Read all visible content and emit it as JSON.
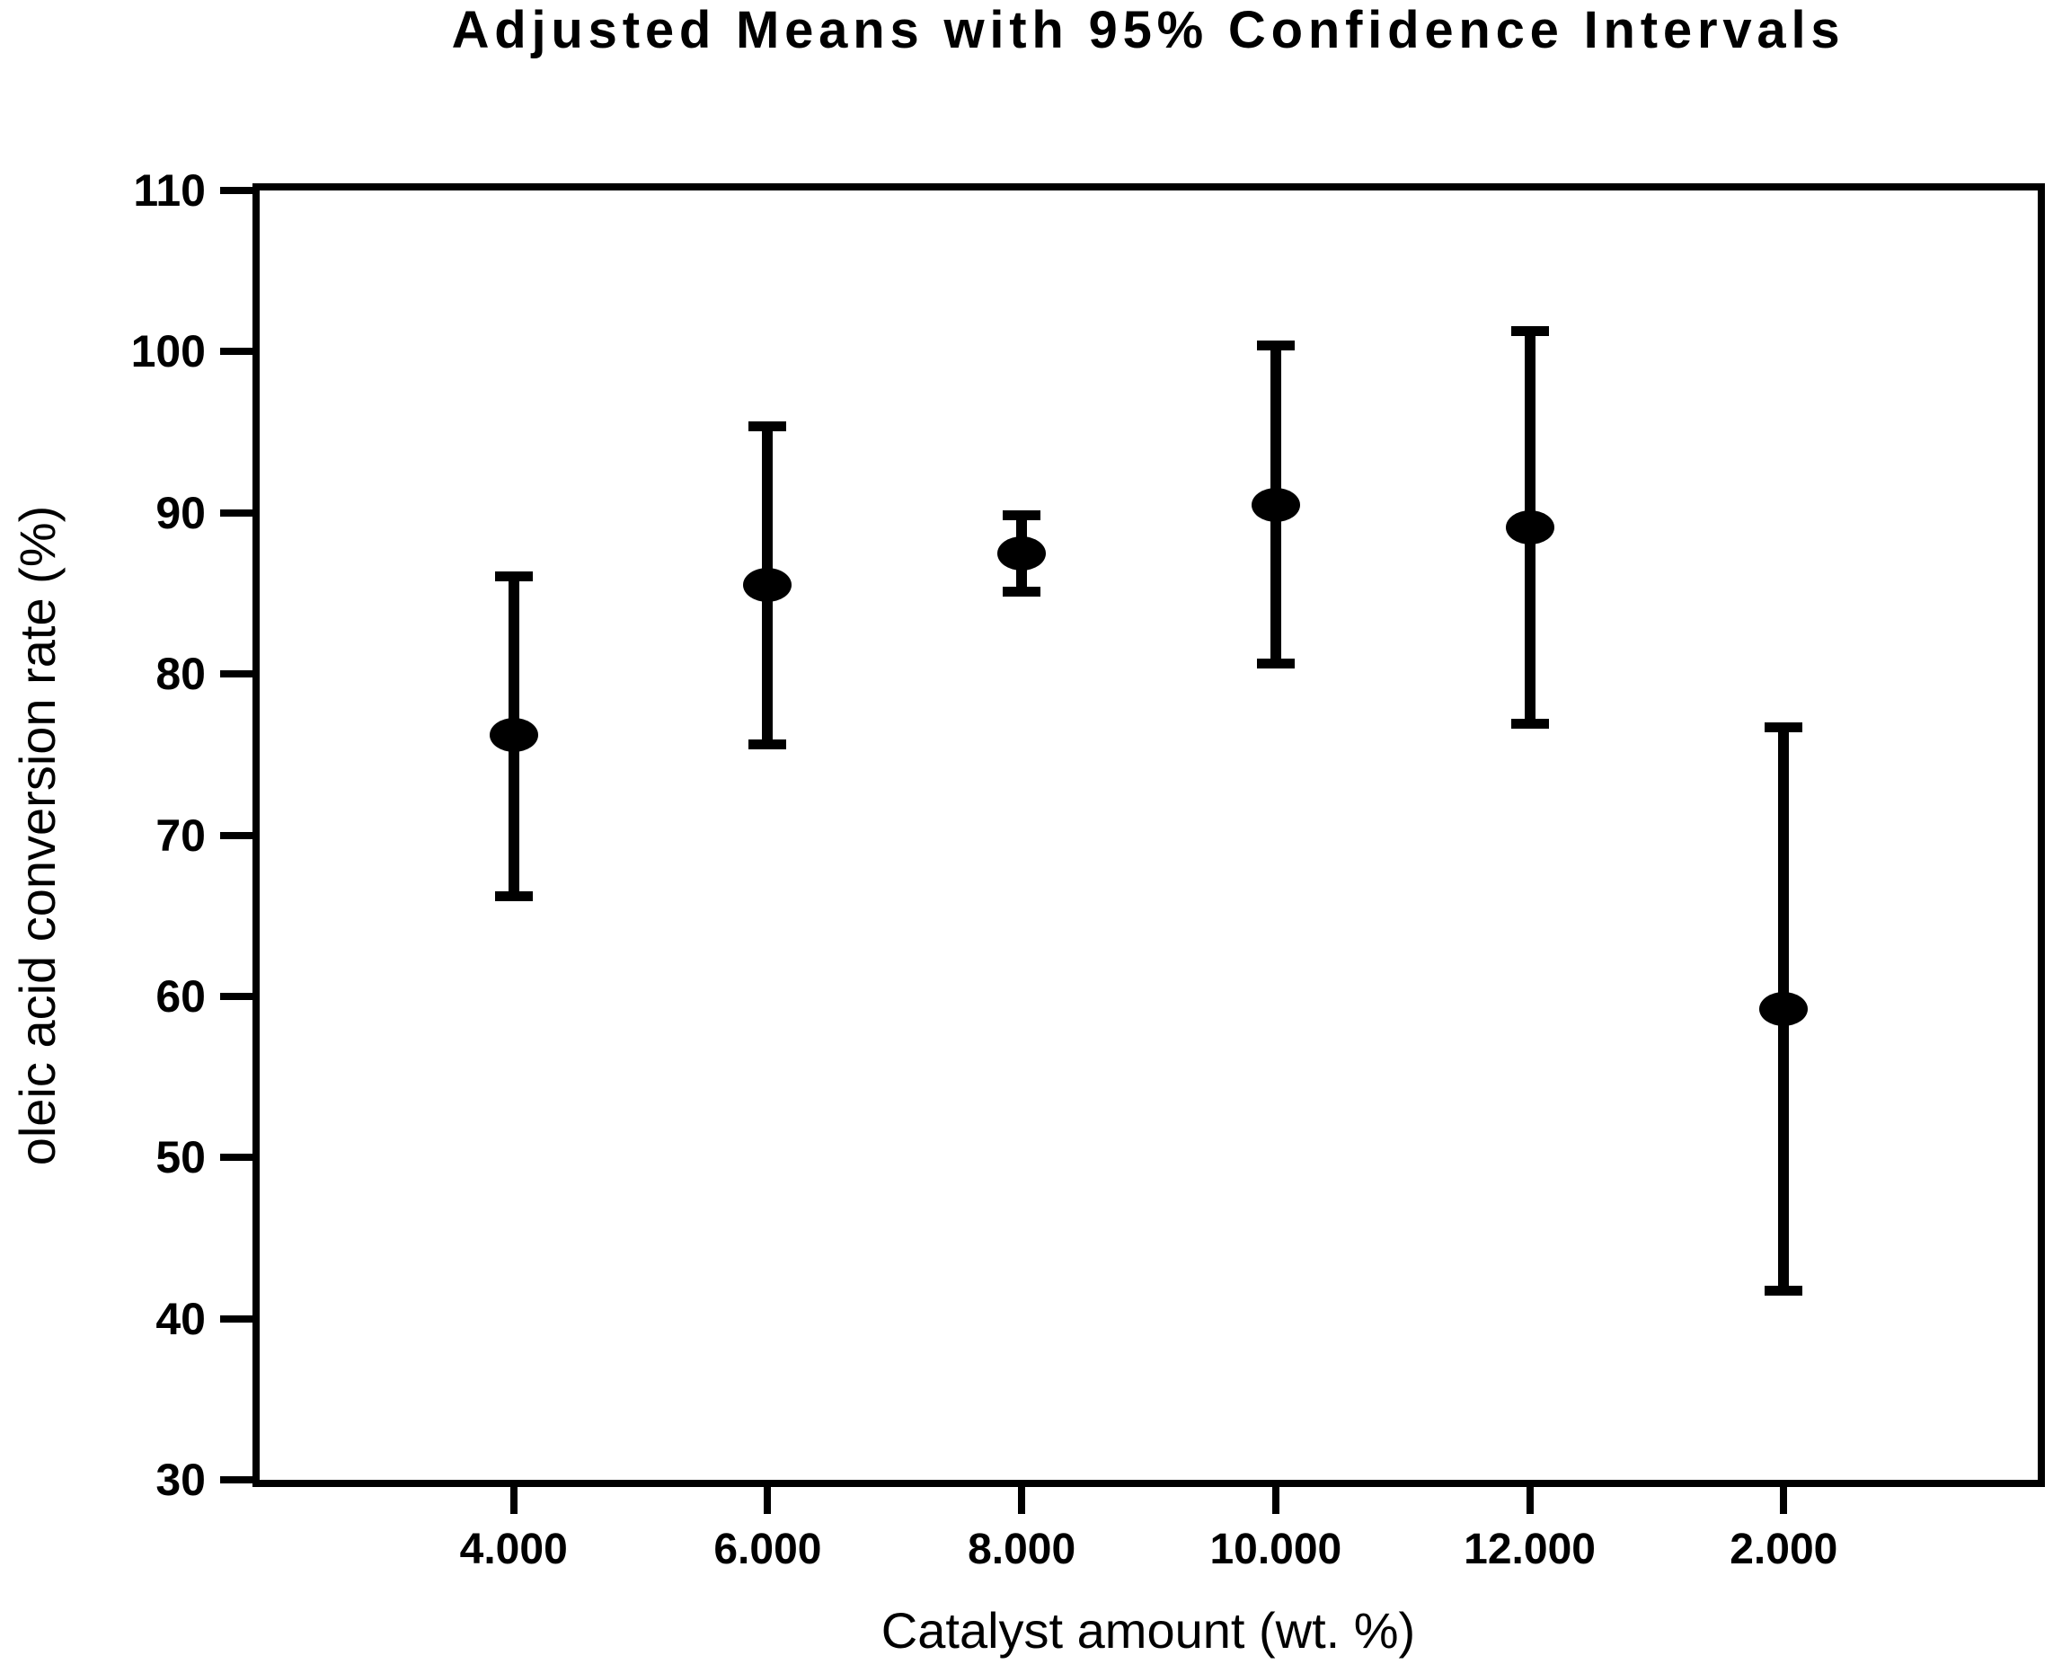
{
  "figure": {
    "background_color": "#ffffff",
    "foreground_color": "#000000"
  },
  "chart_data": {
    "type": "scatter",
    "variant": "adjusted-means-with-error-bars",
    "title": "Adjusted Means with 95% Confidence Intervals",
    "xlabel": "Catalyst amount (wt. %)",
    "ylabel": "oleic acid conversion rate (%)",
    "categories": [
      "4.000",
      "6.000",
      "8.000",
      "10.000",
      "12.000",
      "2.000"
    ],
    "series": [
      {
        "name": "Adjusted mean",
        "values": [
          76.2,
          85.5,
          87.5,
          90.5,
          89.1,
          59.2
        ],
        "ci_low": [
          66.2,
          75.6,
          85.1,
          80.6,
          76.9,
          41.7
        ],
        "ci_high": [
          86.1,
          95.4,
          89.9,
          100.4,
          101.3,
          76.7
        ]
      }
    ],
    "ylim": [
      30,
      110
    ],
    "y_ticks": [
      110,
      100,
      90,
      80,
      70,
      60,
      50,
      40,
      30
    ],
    "grid": false,
    "legend_position": "none",
    "marker": {
      "shape": "filled-ellipse",
      "color": "#000000"
    },
    "error_bars": {
      "style": "capped",
      "color": "#000000"
    }
  }
}
